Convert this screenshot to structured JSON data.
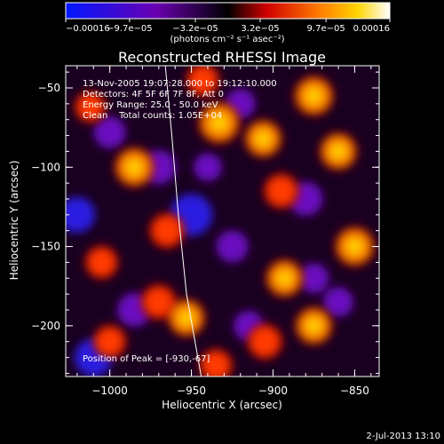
{
  "chart_data": {
    "type": "heatmap",
    "title": "Reconstructed RHESSI Image",
    "xlabel": "Heliocentric X (arcsec)",
    "ylabel": "Heliocentric Y (arcsec)",
    "xlim": [
      -1027,
      -835
    ],
    "ylim": [
      -232,
      -36
    ],
    "xticks": [
      -1000,
      -950,
      -900,
      -850
    ],
    "xtick_labels": [
      "−1000",
      "−950",
      "−900",
      "−850"
    ],
    "yticks": [
      -50,
      -100,
      -150,
      -200
    ],
    "ytick_labels": [
      "−50",
      "−100",
      "−150",
      "−200"
    ],
    "colorbar": {
      "min": -0.00016,
      "max": 0.00016,
      "tick_values": [
        -0.00016,
        -9.7e-05,
        -3.2e-05,
        3.2e-05,
        9.7e-05,
        0.00016
      ],
      "tick_labels": [
        "−0.00016",
        "−9.7e−05",
        "−3.2e−05",
        "3.2e−05",
        "9.7e−05",
        "0.00016"
      ],
      "unit_label": "(photons cm⁻² s⁻¹ asec⁻²)",
      "colors": [
        "#0018ff",
        "#6a00b0",
        "#000000",
        "#d00000",
        "#ff7a00",
        "#ffd400",
        "#ffffff"
      ]
    },
    "annotations": [
      "13-Nov-2005 19:07:28.000 to 19:12:10.000",
      "Detectors: 4F 5F 6F 7F 8F, Att 0",
      "Energy Range: 25.0 - 50.0 keV",
      "Clean    Total counts: 1.05E+04",
      "Position of Peak = [-930,-67]"
    ],
    "peak": {
      "x": -930,
      "y": -67
    },
    "limb_curve": [
      {
        "x": -966,
        "y": -36
      },
      {
        "x": -962,
        "y": -80
      },
      {
        "x": -958,
        "y": -130
      },
      {
        "x": -953,
        "y": -180
      },
      {
        "x": -944,
        "y": -232
      }
    ],
    "bright_sources": [
      {
        "x": -933,
        "y": -72,
        "level": 0.0001
      },
      {
        "x": -943,
        "y": -45,
        "level": 6e-05
      },
      {
        "x": -985,
        "y": -100,
        "level": 9e-05
      },
      {
        "x": -1012,
        "y": -62,
        "level": 5e-05
      },
      {
        "x": -906,
        "y": -82,
        "level": 8e-05
      },
      {
        "x": -875,
        "y": -55,
        "level": 9e-05
      },
      {
        "x": -860,
        "y": -90,
        "level": 8e-05
      },
      {
        "x": -895,
        "y": -115,
        "level": 7e-05
      },
      {
        "x": -965,
        "y": -140,
        "level": 7e-05
      },
      {
        "x": -1005,
        "y": -160,
        "level": 6e-05
      },
      {
        "x": -970,
        "y": -185,
        "level": 7e-05
      },
      {
        "x": -953,
        "y": -195,
        "level": 8e-05
      },
      {
        "x": -893,
        "y": -170,
        "level": 8e-05
      },
      {
        "x": -905,
        "y": -210,
        "level": 7e-05
      },
      {
        "x": -850,
        "y": -150,
        "level": 9e-05
      },
      {
        "x": -875,
        "y": -200,
        "level": 8e-05
      },
      {
        "x": -1000,
        "y": -210,
        "level": 6e-05
      },
      {
        "x": -935,
        "y": -225,
        "level": 6e-05
      }
    ],
    "dark_sources": [
      {
        "x": -920,
        "y": -60,
        "level": -6e-05
      },
      {
        "x": -1000,
        "y": -78,
        "level": -7e-05
      },
      {
        "x": -1020,
        "y": -130,
        "level": -9e-05
      },
      {
        "x": -950,
        "y": -130,
        "level": -0.00012
      },
      {
        "x": -970,
        "y": -100,
        "level": -8e-05
      },
      {
        "x": -925,
        "y": -150,
        "level": -7e-05
      },
      {
        "x": -1010,
        "y": -220,
        "level": -0.0001
      },
      {
        "x": -985,
        "y": -190,
        "level": -8e-05
      },
      {
        "x": -915,
        "y": -200,
        "level": -6e-05
      },
      {
        "x": -880,
        "y": -120,
        "level": -8e-05
      },
      {
        "x": -860,
        "y": -185,
        "level": -6e-05
      },
      {
        "x": -875,
        "y": -170,
        "level": -6e-05
      },
      {
        "x": -940,
        "y": -100,
        "level": -5e-05
      }
    ]
  },
  "footer": {
    "timestamp": "2-Jul-2013 13:10"
  }
}
